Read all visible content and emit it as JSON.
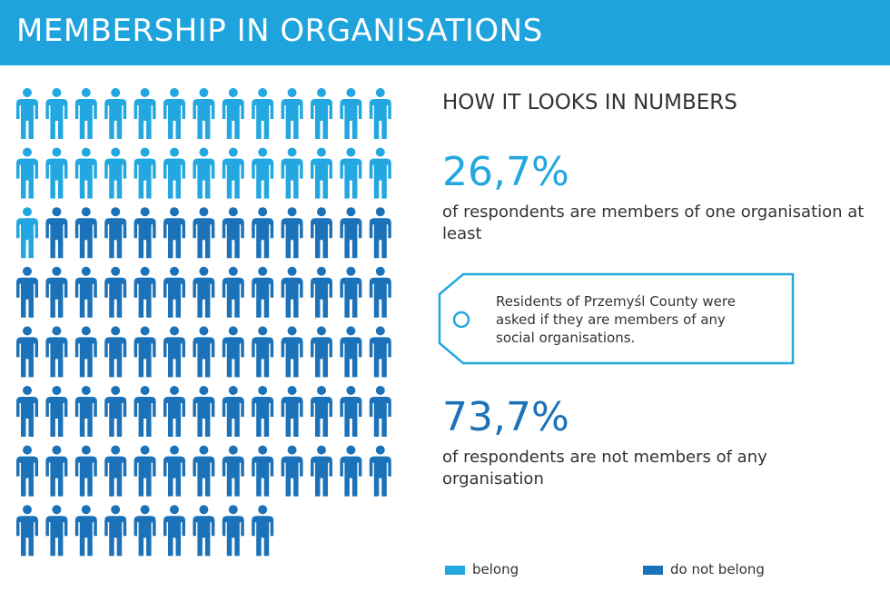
{
  "chart_data": {
    "type": "pictogram",
    "title": "MEMBERSHIP IN ORGANISATIONS",
    "subtitle": "HOW IT LOOKS IN NUMBERS",
    "note": "Residents of Przemyśl County were asked if they are members of any social organisations.",
    "series": [
      {
        "name": "belong",
        "color": "#22a7e0",
        "values": [
          26.7
        ],
        "value_labels": [
          "26,7%"
        ],
        "description": "of respondents are members of one organisation at least"
      },
      {
        "name": "do not belong",
        "color": "#1b72b8",
        "values": [
          73.7
        ],
        "value_labels": [
          "73,7%"
        ],
        "description": "of respondents are not members of any organisation"
      }
    ]
  }
}
